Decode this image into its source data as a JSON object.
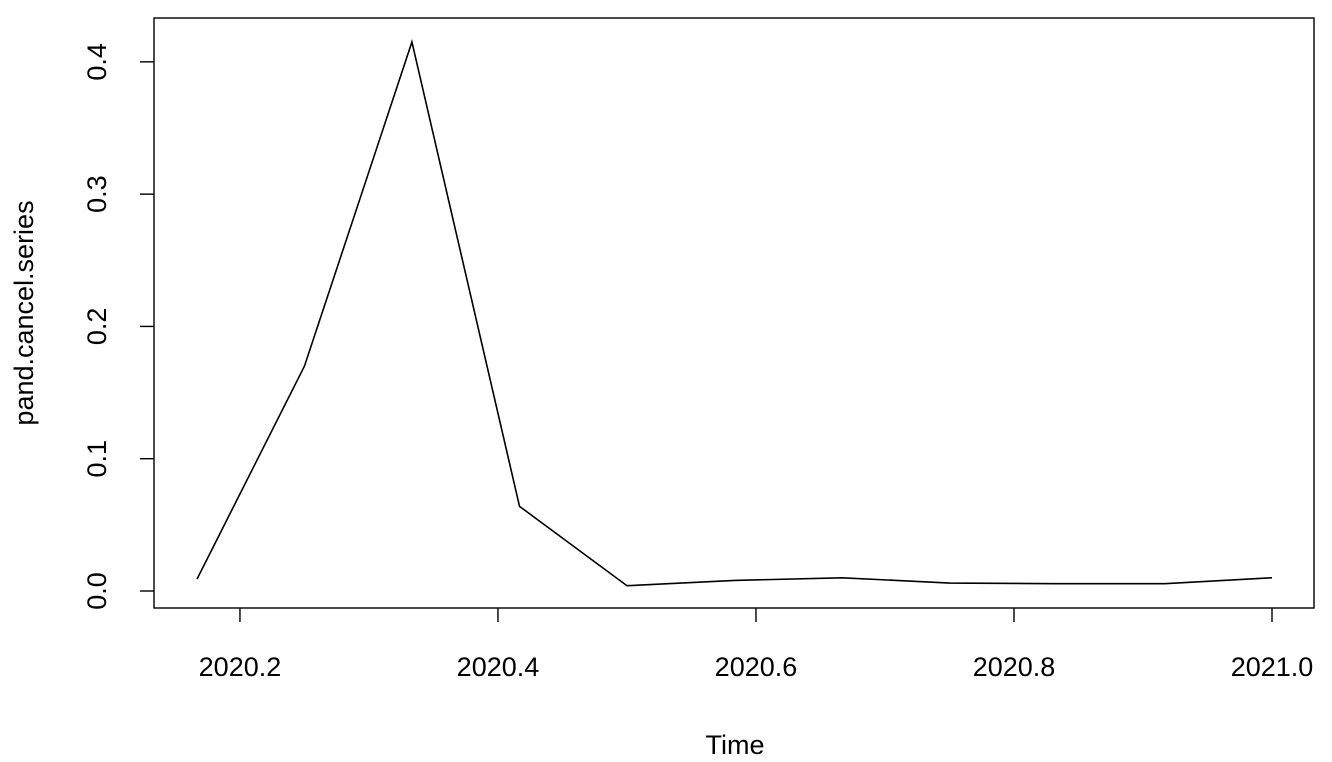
{
  "chart_data": {
    "type": "line",
    "title": "",
    "xlabel": "Time",
    "ylabel": "pand.cancel.series",
    "xlim": [
      2020.1667,
      2021.0
    ],
    "ylim": [
      0.0,
      0.415
    ],
    "x_ticks": [
      2020.2,
      2020.4,
      2020.6,
      2020.8,
      2021.0
    ],
    "x_tick_labels": [
      "2020.2",
      "2020.4",
      "2020.6",
      "2020.8",
      "2021.0"
    ],
    "y_ticks": [
      0.0,
      0.1,
      0.2,
      0.3,
      0.4
    ],
    "y_tick_labels": [
      "0.0",
      "0.1",
      "0.2",
      "0.3",
      "0.4"
    ],
    "grid": false,
    "legend": "none",
    "line_color": "#000000",
    "series": [
      {
        "x": [
          2020.1667,
          2020.25,
          2020.3333,
          2020.4167,
          2020.5,
          2020.5833,
          2020.6667,
          2020.75,
          2020.8333,
          2020.9167,
          2021.0
        ],
        "y": [
          0.009,
          0.17,
          0.415,
          0.064,
          0.004,
          0.008,
          0.01,
          0.006,
          0.0055,
          0.0055,
          0.01
        ]
      }
    ]
  }
}
